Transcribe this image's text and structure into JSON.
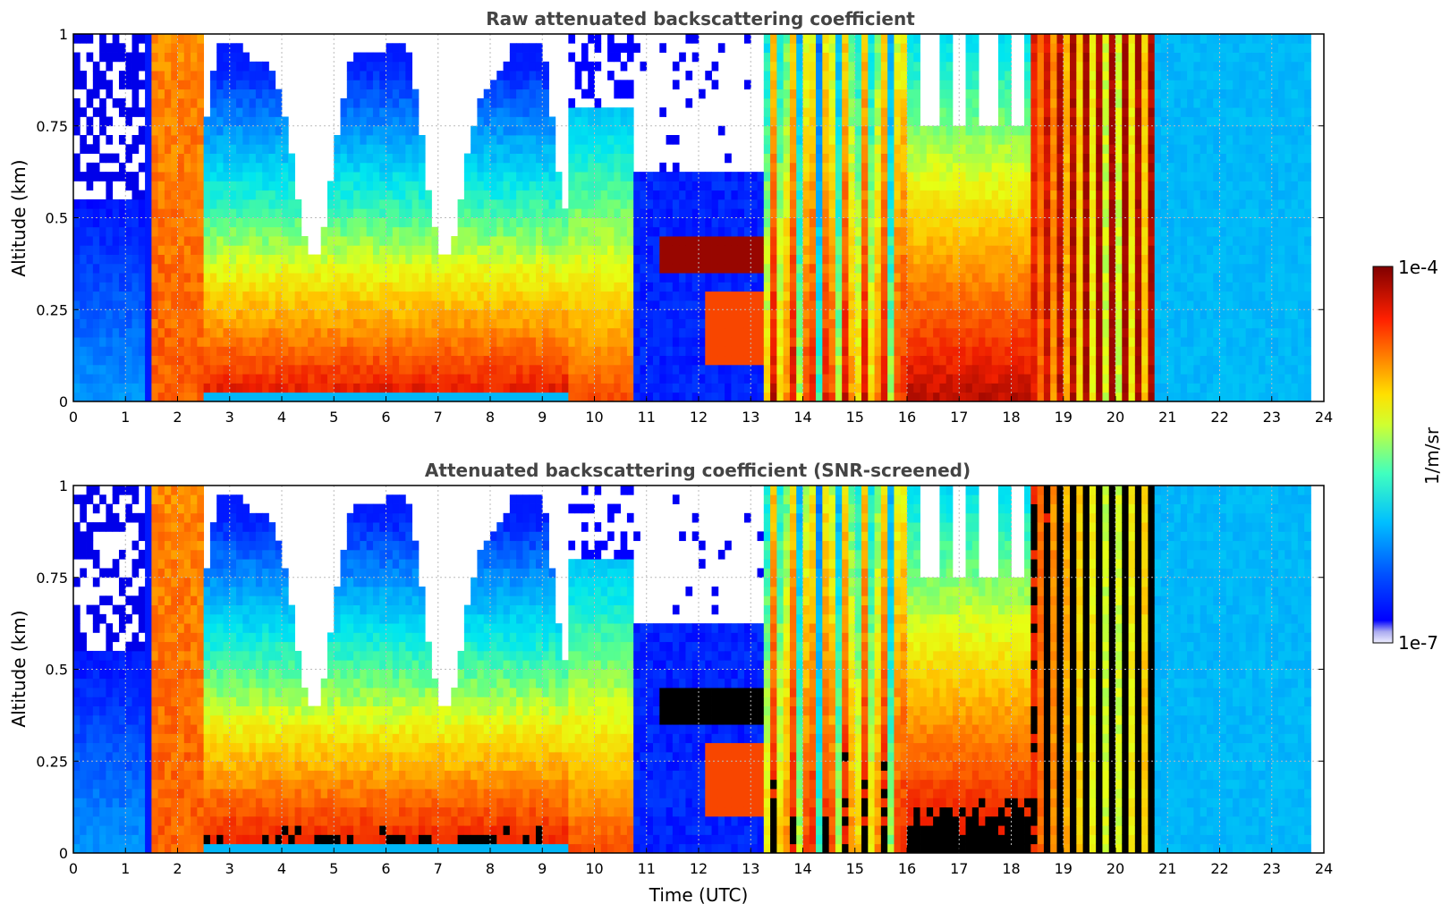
{
  "chart_data": [
    {
      "type": "heatmap",
      "title": "Raw attenuated backscattering coefficient",
      "ylabel": "Altitude (km)",
      "xlabel": "",
      "xlim": [
        0,
        24
      ],
      "ylim": [
        0,
        1
      ],
      "x_ticks": [
        "0",
        "1",
        "2",
        "3",
        "4",
        "5",
        "6",
        "7",
        "8",
        "9",
        "10",
        "11",
        "12",
        "13",
        "14",
        "15",
        "16",
        "17",
        "18",
        "19",
        "20",
        "21",
        "22",
        "23",
        "24"
      ],
      "y_ticks": [
        "0",
        "0.25",
        "0.5",
        "0.75",
        "1"
      ],
      "grid": true
    },
    {
      "type": "heatmap",
      "title": "Attenuated backscattering coefficient (SNR-screened)",
      "ylabel": "Altitude (km)",
      "xlabel": "Time (UTC)",
      "xlim": [
        0,
        24
      ],
      "ylim": [
        0,
        1
      ],
      "x_ticks": [
        "0",
        "1",
        "2",
        "3",
        "4",
        "5",
        "6",
        "7",
        "8",
        "9",
        "10",
        "11",
        "12",
        "13",
        "14",
        "15",
        "16",
        "17",
        "18",
        "19",
        "20",
        "21",
        "22",
        "23",
        "24"
      ],
      "y_ticks": [
        "0",
        "0.25",
        "0.5",
        "0.75",
        "1"
      ],
      "grid": true
    }
  ],
  "colorbar": {
    "label": "1/m/sr",
    "max_label": "1e-4",
    "min_label": "1e-7",
    "colormap": "jet",
    "scale": "log"
  }
}
